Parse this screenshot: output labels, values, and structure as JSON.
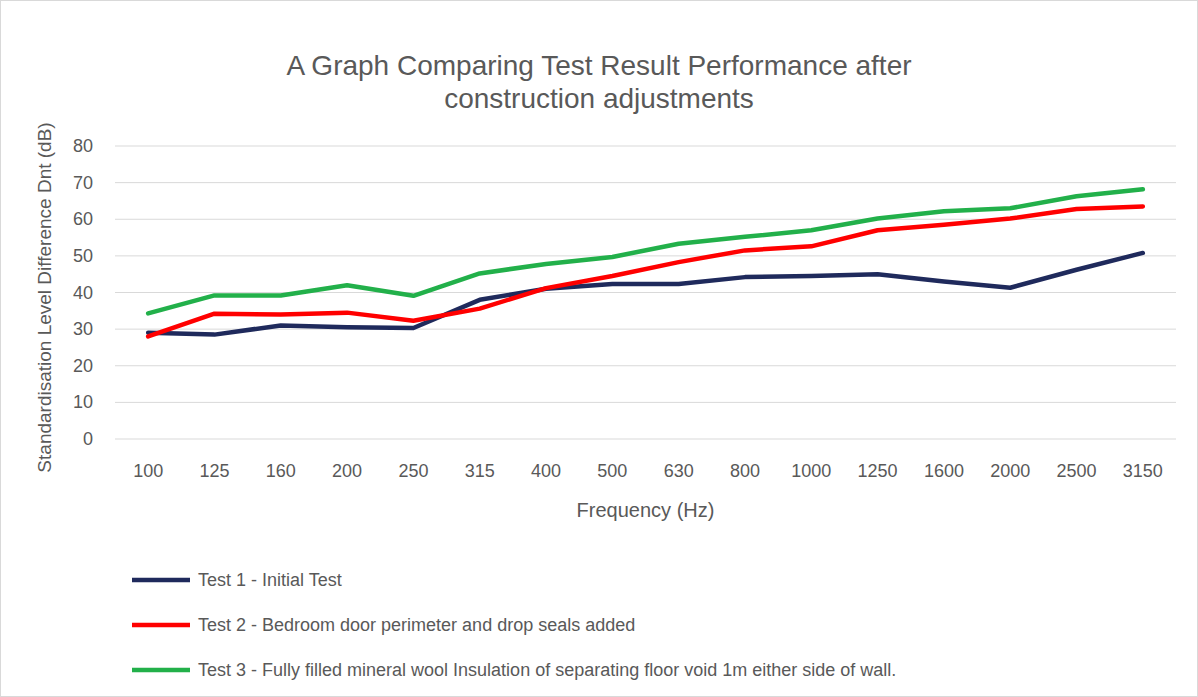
{
  "chart_data": {
    "type": "line",
    "title": "A Graph Comparing Test Result Performance after construction adjustments",
    "x_label": "Frequency (Hz)",
    "y_label": "Standardisation Level Difference Dnt (dB)",
    "categories": [
      "100",
      "125",
      "160",
      "200",
      "250",
      "315",
      "400",
      "500",
      "630",
      "800",
      "1000",
      "1250",
      "1600",
      "2000",
      "2500",
      "3150"
    ],
    "series": [
      {
        "name": "Test 1 - Initial Test",
        "color": "#1f2a5c",
        "values": [
          29,
          28.5,
          31,
          30.5,
          30.3,
          38,
          41,
          42.3,
          42.3,
          44.2,
          44.5,
          45,
          43,
          41.3,
          46.2,
          50.8
        ]
      },
      {
        "name": "Test 2 - Bedroom door perimeter and drop seals added",
        "color": "#ff0000",
        "values": [
          28,
          34.2,
          34,
          34.5,
          32.3,
          35.6,
          41.2,
          44.5,
          48.3,
          51.5,
          52.6,
          57,
          58.5,
          60.2,
          62.8,
          63.5
        ]
      },
      {
        "name": "Test 3 - Fully filled mineral wool Insulation of separating floor void 1m either side of wall.",
        "color": "#22b04a",
        "values": [
          34.3,
          39.2,
          39.2,
          42,
          39.1,
          45.2,
          47.8,
          49.7,
          53.3,
          55.2,
          57,
          60.2,
          62.2,
          63,
          66.3,
          68.2
        ]
      }
    ],
    "ylim": [
      0,
      80
    ],
    "yticks": [
      0,
      10,
      20,
      30,
      40,
      50,
      60,
      70,
      80
    ],
    "grid": true,
    "legend": "bottom"
  }
}
